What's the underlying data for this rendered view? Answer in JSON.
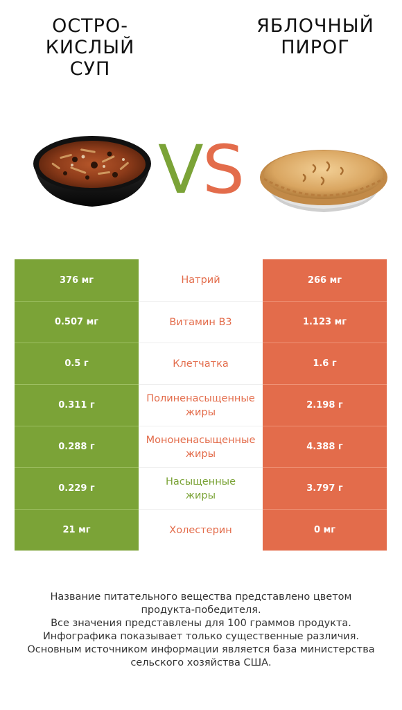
{
  "left_food": {
    "title_line1": "ОСТРО-",
    "title_line2": "КИСЛЫЙ",
    "title_line3": "СУП",
    "image_icon": "soup-bowl-icon",
    "color": "#7ba337"
  },
  "right_food": {
    "title_line1": "ЯБЛОЧНЫЙ",
    "title_line2": "ПИРОГ",
    "image_icon": "apple-pie-icon",
    "color": "#e36c4b"
  },
  "vs": {
    "v": "V",
    "s": "S"
  },
  "rows": [
    {
      "left": "376 мг",
      "label1": "Натрий",
      "label2": "",
      "right": "266 мг",
      "winner": "right"
    },
    {
      "left": "0.507 мг",
      "label1": "Витамин B3",
      "label2": "",
      "right": "1.123 мг",
      "winner": "right"
    },
    {
      "left": "0.5 г",
      "label1": "Клетчатка",
      "label2": "",
      "right": "1.6 г",
      "winner": "right"
    },
    {
      "left": "0.311 г",
      "label1": "Полиненасыщенные",
      "label2": "жиры",
      "right": "2.198 г",
      "winner": "right"
    },
    {
      "left": "0.288 г",
      "label1": "Мононенасыщенные",
      "label2": "жиры",
      "right": "4.388 г",
      "winner": "right"
    },
    {
      "left": "0.229 г",
      "label1": "Насыщенные",
      "label2": "жиры",
      "right": "3.797 г",
      "winner": "left"
    },
    {
      "left": "21 мг",
      "label1": "Холестерин",
      "label2": "",
      "right": "0 мг",
      "winner": "right"
    }
  ],
  "footer": {
    "line1": "Название питательного вещества представлено цветом",
    "line2": "продукта-победителя.",
    "line3": "Все значения представлены для 100 граммов продукта.",
    "line4": "Инфографика показывает только существенные различия.",
    "line5": "Основным источником информации является база министерства",
    "line6": "сельского хозяйства США."
  }
}
